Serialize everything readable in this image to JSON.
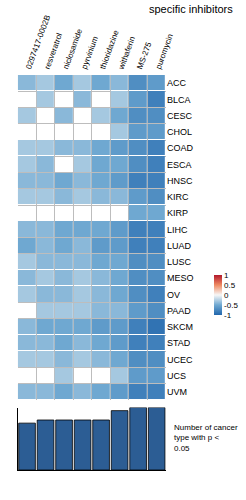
{
  "chart_data": [
    {
      "type": "heatmap",
      "title": "specific inhibitors",
      "x": [
        "0297417-0002B",
        "resveratrol",
        "niclosamide",
        "pyrvinium",
        "thioridazine",
        "withaferin",
        "MS-275",
        "puromycin"
      ],
      "y": [
        "ACC",
        "BLCA",
        "CESC",
        "CHOL",
        "COAD",
        "ESCA",
        "HNSC",
        "KIRC",
        "KIRP",
        "LIHC",
        "LUAD",
        "LUSC",
        "MESO",
        "OV",
        "PAAD",
        "SKCM",
        "STAD",
        "UCEC",
        "UCS",
        "UVM"
      ],
      "z": [
        [
          -0.4,
          -0.3,
          -0.5,
          -0.3,
          -0.5,
          -0.4,
          -0.7,
          -0.6
        ],
        [
          null,
          -0.3,
          null,
          -0.4,
          null,
          -0.3,
          -0.6,
          -0.8
        ],
        [
          -0.3,
          null,
          -0.4,
          null,
          -0.3,
          -0.5,
          -0.7,
          -0.7
        ],
        [
          null,
          null,
          null,
          null,
          null,
          -0.3,
          -0.6,
          -0.6
        ],
        [
          -0.3,
          -0.3,
          -0.4,
          -0.4,
          -0.5,
          -0.6,
          -0.7,
          -0.8
        ],
        [
          -0.3,
          -0.4,
          null,
          -0.3,
          -0.5,
          -0.5,
          -0.7,
          -0.8
        ],
        [
          -0.4,
          -0.4,
          -0.5,
          -0.4,
          -0.5,
          -0.6,
          -0.8,
          -0.8
        ],
        [
          -0.3,
          -0.3,
          -0.4,
          -0.3,
          -0.4,
          -0.4,
          -0.6,
          -0.7
        ],
        [
          null,
          null,
          null,
          null,
          null,
          null,
          -0.5,
          -0.5
        ],
        [
          -0.4,
          -0.4,
          -0.5,
          -0.5,
          -0.5,
          -0.6,
          -0.8,
          -0.8
        ],
        [
          -0.5,
          -0.4,
          -0.5,
          -0.4,
          -0.6,
          -0.6,
          -0.8,
          -0.8
        ],
        [
          -0.3,
          -0.4,
          -0.4,
          -0.4,
          -0.5,
          -0.5,
          -0.7,
          -0.7
        ],
        [
          -0.4,
          -0.3,
          -0.4,
          -0.3,
          -0.4,
          -0.5,
          -0.7,
          -0.7
        ],
        [
          -0.3,
          -0.4,
          -0.4,
          -0.3,
          -0.4,
          -0.5,
          -0.7,
          -0.8
        ],
        [
          null,
          -0.3,
          -0.3,
          -0.3,
          -0.4,
          -0.4,
          -0.6,
          -0.7
        ],
        [
          -0.4,
          -0.5,
          -0.5,
          -0.5,
          -0.6,
          -0.6,
          -0.8,
          -0.9
        ],
        [
          -0.4,
          -0.4,
          -0.5,
          -0.4,
          -0.5,
          -0.6,
          -0.8,
          -0.8
        ],
        [
          -0.3,
          -0.3,
          -0.4,
          -0.3,
          -0.4,
          -0.5,
          -0.7,
          -0.7
        ],
        [
          null,
          null,
          -0.3,
          null,
          null,
          -0.3,
          -0.6,
          -0.6
        ],
        [
          -0.4,
          -0.4,
          -0.5,
          -0.4,
          -0.5,
          -0.6,
          -0.8,
          -0.8
        ]
      ],
      "colorbar": {
        "range": [
          -1,
          1
        ],
        "ticks": [
          1,
          0.5,
          0,
          -0.5,
          -1
        ]
      }
    },
    {
      "type": "bar",
      "title": "Number of cancer type with p < 0.05",
      "categories": [
        "0297417-0002B",
        "resveratrol",
        "niclosamide",
        "pyrvinium",
        "thioridazine",
        "withaferin",
        "MS-275",
        "puromycin"
      ],
      "values": [
        15,
        16,
        16,
        16,
        16,
        19,
        20,
        20
      ],
      "ylim": [
        0,
        20
      ],
      "color": "#2c5d94",
      "tick_labels": false
    }
  ]
}
